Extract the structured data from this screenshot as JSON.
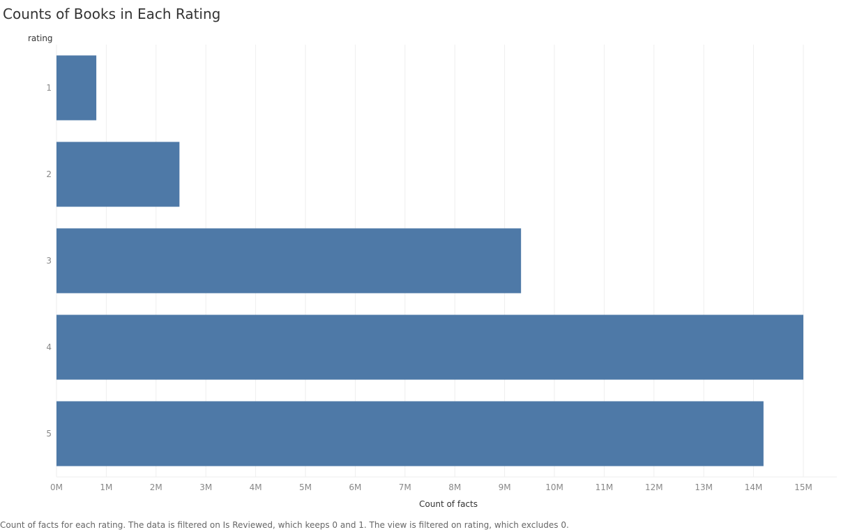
{
  "title": "Counts of Books in Each Rating",
  "caption": "Count of facts for each rating. The data is filtered on Is Reviewed, which keeps 0 and 1. The view is filtered on rating, which excludes 0.",
  "colors": {
    "bar": "#4e79a7",
    "grid": "#eeeeee"
  },
  "chart_data": {
    "type": "bar",
    "orientation": "horizontal",
    "title": "Counts of Books in Each Rating",
    "ylabel": "rating",
    "xlabel": "Count of facts",
    "categories": [
      "1",
      "2",
      "3",
      "4",
      "5"
    ],
    "values": [
      800000,
      2470000,
      9330000,
      15000000,
      14200000
    ],
    "xlim": [
      0,
      15000000
    ],
    "x_ticks": [
      0,
      1000000,
      2000000,
      3000000,
      4000000,
      5000000,
      6000000,
      7000000,
      8000000,
      9000000,
      10000000,
      11000000,
      12000000,
      13000000,
      14000000,
      15000000
    ],
    "x_tick_labels": [
      "0M",
      "1M",
      "2M",
      "3M",
      "4M",
      "5M",
      "6M",
      "7M",
      "8M",
      "9M",
      "10M",
      "11M",
      "12M",
      "13M",
      "14M",
      "15M"
    ],
    "grid": true,
    "legend": "none"
  }
}
